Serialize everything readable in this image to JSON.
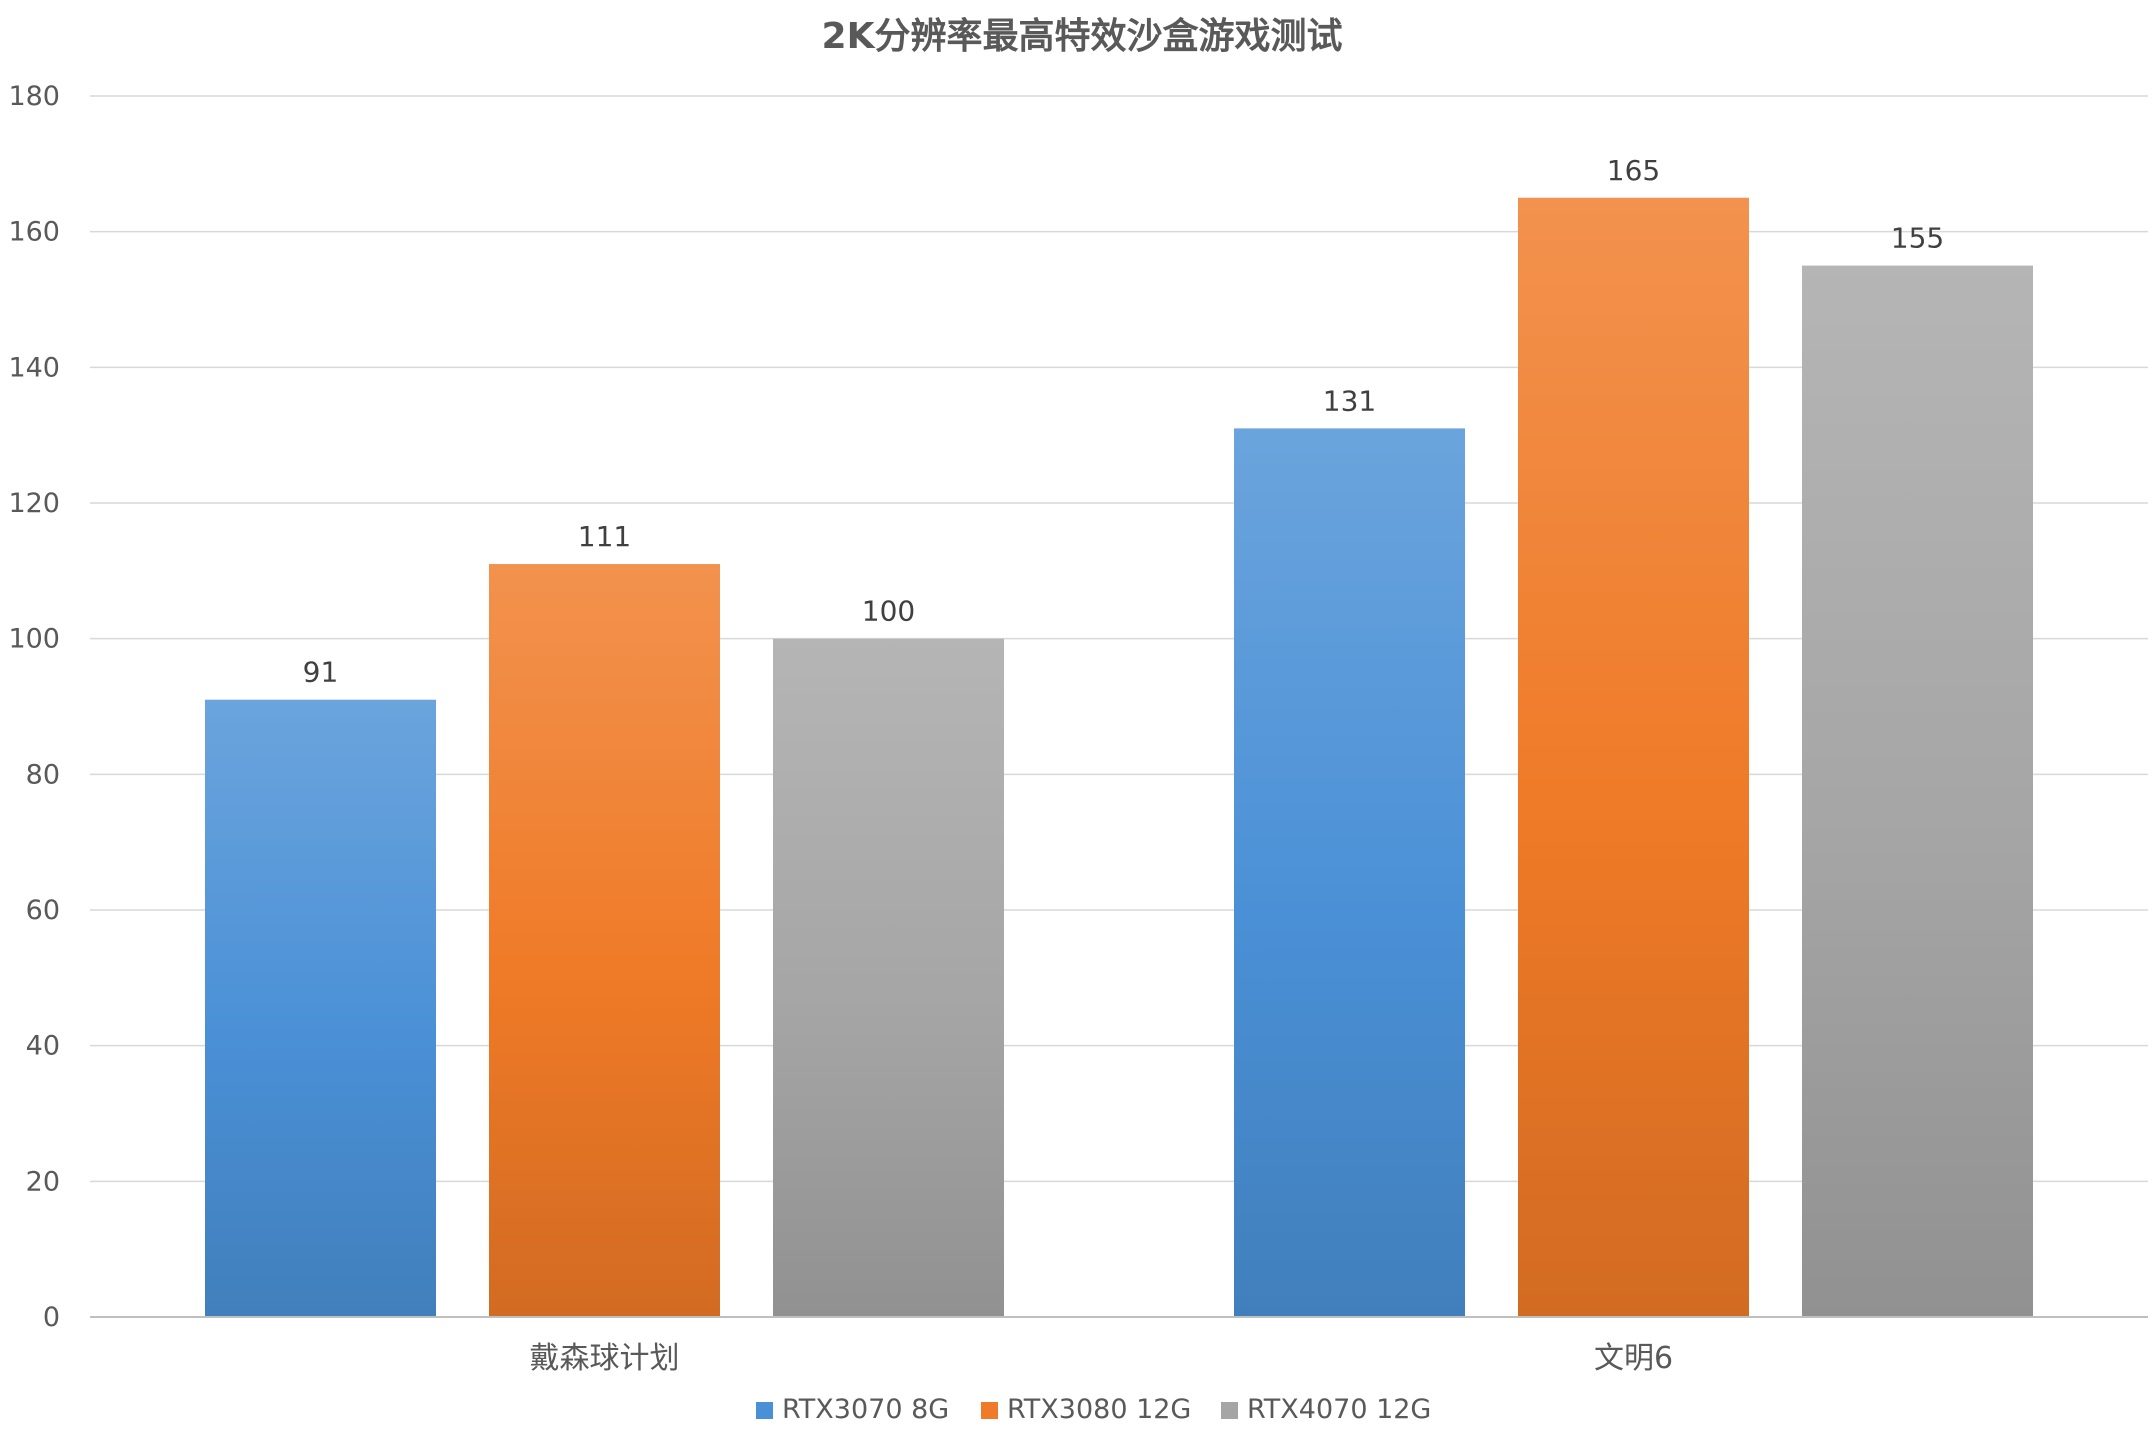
{
  "chart_data": {
    "type": "bar",
    "title": "2K分辨率最高特效沙盒游戏测试",
    "categories": [
      "戴森球计划",
      "文明6"
    ],
    "series": [
      {
        "name": "RTX3070 8G",
        "values": [
          91,
          131
        ],
        "color": "#4a90d6"
      },
      {
        "name": "RTX3080 12G",
        "values": [
          111,
          165
        ],
        "color": "#ef7a27"
      },
      {
        "name": "RTX4070 12G",
        "values": [
          100,
          155
        ],
        "color": "#a5a5a5"
      }
    ],
    "ylim": [
      0,
      180
    ],
    "yticks": [
      0,
      20,
      40,
      60,
      80,
      100,
      120,
      140,
      160,
      180
    ],
    "grid": true,
    "legend_position": "bottom"
  }
}
